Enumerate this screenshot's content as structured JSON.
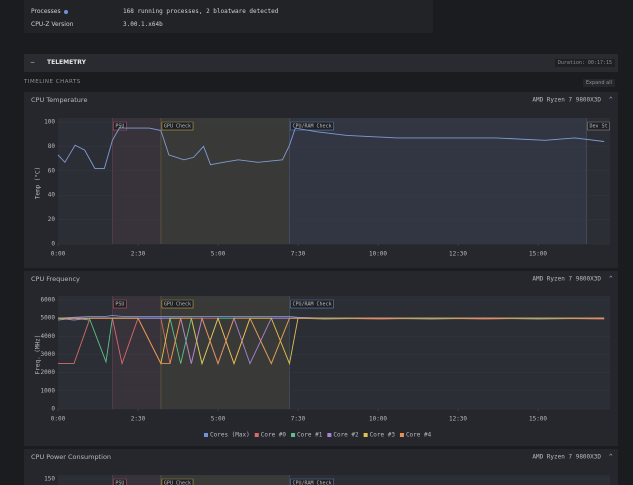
{
  "system_info": {
    "rows": [
      [
        "Processes",
        "168 running processes, 2 bloatware detected"
      ],
      [
        "CPU-Z Version",
        "3.00.1.x64b"
      ]
    ]
  },
  "telemetry": {
    "title": "TELEMETRY",
    "duration": "Duration: 00:17:15",
    "section": "TIMELINE CHARTS",
    "expand": "Expand all"
  },
  "chart_data": [
    {
      "type": "line",
      "title": "CPU Temperature",
      "device": "AMD Ryzen 7 9800X3D",
      "y_label": "Temp (°C)",
      "x": [
        0,
        13,
        32,
        50,
        69,
        87,
        102,
        115,
        171,
        193,
        208,
        236,
        254,
        273,
        286,
        310,
        338,
        375,
        421,
        434,
        445,
        486,
        542,
        635,
        728,
        821,
        913,
        969,
        1024
      ],
      "series": [
        {
          "color": "#7f9bd6",
          "values": [
            73,
            67,
            81,
            77,
            62,
            62,
            85,
            95,
            95,
            93,
            73,
            69,
            71,
            80,
            65,
            67,
            69,
            67,
            69,
            81,
            95,
            92,
            89,
            87,
            87,
            87,
            85,
            87,
            84
          ]
        }
      ],
      "xlim": [
        0,
        1035
      ],
      "ylim": [
        0,
        100
      ],
      "yticks": [
        0,
        20,
        40,
        60,
        80,
        100
      ],
      "xticks": [
        {
          "value": 0,
          "label": "0:00"
        },
        {
          "value": 150,
          "label": "2:30"
        },
        {
          "value": 300,
          "label": "5:00"
        },
        {
          "value": 450,
          "label": "7:30"
        },
        {
          "value": 600,
          "label": "10:00"
        },
        {
          "value": 750,
          "label": "12:30"
        },
        {
          "value": 900,
          "label": "15:00"
        }
      ],
      "annotations": [
        {
          "x": 102,
          "label": "PSU",
          "color": "#d0607a"
        },
        {
          "x": 193,
          "label": "GPU Check",
          "color": "#d8c050"
        },
        {
          "x": 434,
          "label": "CPU/RAM Check",
          "color": "#6f93d8"
        },
        {
          "x": 991,
          "label": "Dev St",
          "color": "#9a9aa0"
        }
      ]
    },
    {
      "type": "line",
      "title": "CPU Frequency",
      "device": "AMD Ryzen 7 9800X3D",
      "y_label": "Freq. (MHz)",
      "legend": true,
      "x": [
        0,
        30,
        60,
        90,
        102,
        120,
        150,
        193,
        210,
        230,
        250,
        270,
        300,
        330,
        360,
        400,
        434,
        450,
        500,
        600,
        700,
        800,
        900,
        1024
      ],
      "series": [
        {
          "name": "Cores (Max)",
          "color": "#6f93d8",
          "values": [
            5000,
            5050,
            5100,
            5100,
            5150,
            5100,
            5100,
            5100,
            5100,
            5100,
            5100,
            5100,
            5100,
            5100,
            5100,
            5100,
            5100,
            5050,
            5000,
            5000,
            5000,
            5000,
            5000,
            5000
          ]
        },
        {
          "name": "Core #0",
          "color": "#d86a6a",
          "values": [
            2500,
            2500,
            5000,
            5000,
            5000,
            2500,
            5000,
            5000,
            2500,
            5000,
            2500,
            5000,
            5000,
            2500,
            5000,
            5000,
            5000,
            5000,
            5000,
            4950,
            5000,
            4950,
            5000,
            4950
          ]
        },
        {
          "name": "Core #1",
          "color": "#5fbf8a",
          "values": [
            4900,
            5000,
            4900,
            2600,
            5000,
            5000,
            5000,
            5000,
            5000,
            2500,
            5000,
            2500,
            5000,
            5000,
            5000,
            2500,
            5000,
            5000,
            4950,
            5000,
            4950,
            5000,
            4950,
            5000
          ]
        },
        {
          "name": "Core #2",
          "color": "#a884d8",
          "values": [
            5000,
            4900,
            5000,
            5000,
            5000,
            5000,
            5000,
            5000,
            5000,
            5000,
            2500,
            5000,
            2500,
            5000,
            2500,
            5000,
            5000,
            5000,
            5000,
            5000,
            5000,
            5000,
            5000,
            5000
          ]
        },
        {
          "name": "Core #3",
          "color": "#e0c050",
          "values": [
            5000,
            5000,
            5000,
            5000,
            5000,
            5000,
            5000,
            2500,
            5000,
            5000,
            5000,
            2500,
            5000,
            2500,
            5000,
            5000,
            2500,
            5000,
            5000,
            5000,
            5000,
            5000,
            5000,
            5000
          ]
        },
        {
          "name": "Core #4",
          "color": "#e89050",
          "values": [
            5000,
            5000,
            5000,
            5000,
            5000,
            5000,
            5000,
            2500,
            2500,
            5000,
            5000,
            5000,
            2500,
            5000,
            5000,
            2500,
            5000,
            5000,
            5000,
            5000,
            5000,
            5000,
            5000,
            5000
          ]
        }
      ],
      "xlim": [
        0,
        1035
      ],
      "ylim": [
        0,
        6000
      ],
      "yticks": [
        0,
        1000,
        2000,
        3000,
        4000,
        5000,
        6000
      ],
      "xticks": [
        {
          "value": 0,
          "label": "0:00"
        },
        {
          "value": 150,
          "label": "2:30"
        },
        {
          "value": 300,
          "label": "5:00"
        },
        {
          "value": 450,
          "label": "7:30"
        },
        {
          "value": 600,
          "label": "10:00"
        },
        {
          "value": 750,
          "label": "12:30"
        },
        {
          "value": 900,
          "label": "15:00"
        }
      ],
      "annotations": [
        {
          "x": 102,
          "label": "PSU",
          "color": "#d0607a"
        },
        {
          "x": 193,
          "label": "GPU Check",
          "color": "#d8c050"
        },
        {
          "x": 434,
          "label": "CPU/RAM Check",
          "color": "#6f93d8"
        }
      ]
    },
    {
      "type": "line",
      "title": "CPU Power Consumption",
      "device": "AMD Ryzen 7 9800X3D",
      "xlim": [
        0,
        1035
      ],
      "ylim": [
        0,
        150
      ],
      "yticks": [
        150
      ],
      "annotations": [
        {
          "x": 102,
          "label": "PSU",
          "color": "#d0607a"
        },
        {
          "x": 193,
          "label": "GPU Check",
          "color": "#d8c050"
        },
        {
          "x": 434,
          "label": "CPU/RAM Check",
          "color": "#6f93d8"
        }
      ]
    }
  ]
}
